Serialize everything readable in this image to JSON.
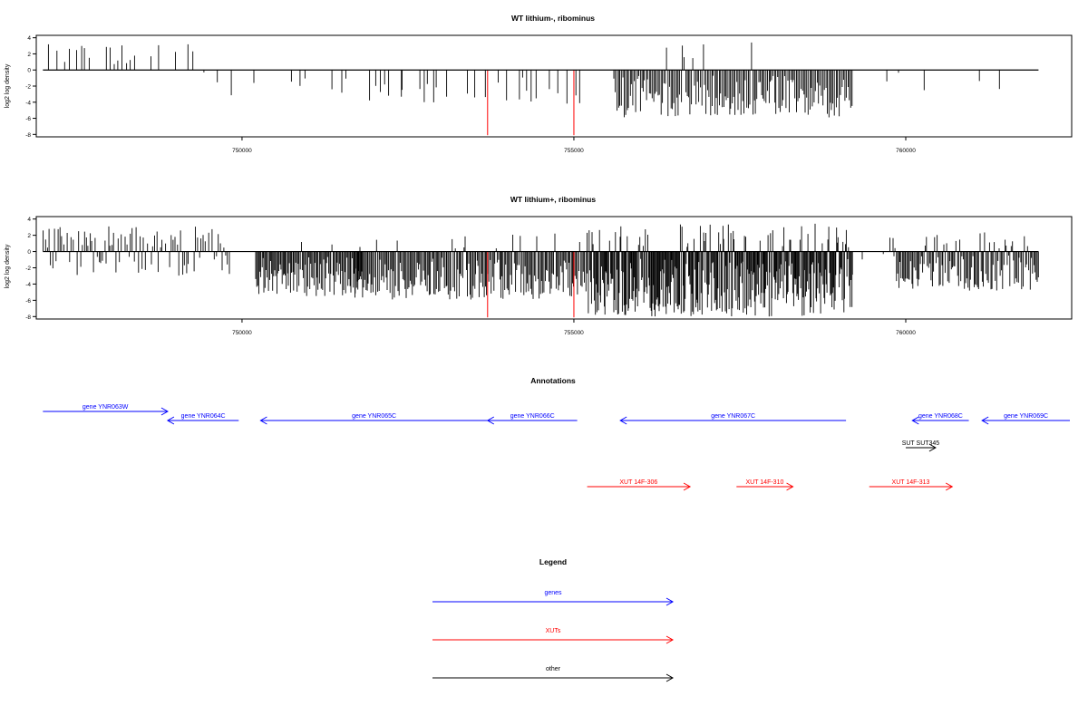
{
  "chart_data": [
    {
      "type": "bar",
      "title": "WT lithium-, ribominus",
      "ylabel": "log2 log density",
      "xlim": [
        746900,
        762500
      ],
      "ylim": [
        -8.3,
        4.3
      ],
      "yticks": [
        4,
        2,
        0,
        -2,
        -4,
        -6,
        -8
      ],
      "xticks": [
        750000,
        755000,
        760000
      ],
      "xtick_labels": [
        "750000",
        "755000",
        "760000"
      ],
      "data_xrange": [
        747000,
        762000
      ],
      "baseline": 0,
      "bar_color": "#000000",
      "highlight_color": "#ff0000",
      "highlights": [
        {
          "x": 753700,
          "y": -8.1
        },
        {
          "x": 755000,
          "y": -8.1
        }
      ],
      "clusters": [
        {
          "x0": 747000,
          "x1": 749600,
          "step": 62,
          "min": 0.6,
          "max": 3.2,
          "amp": 1.0,
          "pos_prob": 0.92,
          "fill": 0.45
        },
        {
          "x0": 749600,
          "x1": 752400,
          "step": 70,
          "min": -4.0,
          "max": 0.5,
          "amp": 1.0,
          "pos_prob": 0.0,
          "fill": 0.35
        },
        {
          "x0": 752400,
          "x1": 755500,
          "step": 65,
          "min": -4.2,
          "max": 0.5,
          "amp": 1.0,
          "pos_prob": 0.0,
          "fill": 0.45
        },
        {
          "x0": 755600,
          "x1": 759200,
          "step": 22,
          "min": -5.9,
          "max": 3.5,
          "amp": 1.0,
          "pos_prob": 0.03,
          "fill": 1.0
        },
        {
          "x0": 759200,
          "x1": 762000,
          "step": 95,
          "min": -2.8,
          "max": 2.9,
          "amp": 1.0,
          "pos_prob": 0.1,
          "fill": 0.25
        }
      ]
    },
    {
      "type": "bar",
      "title": "WT lithium+, ribominus",
      "ylabel": "log2 log density",
      "xlim": [
        746900,
        762500
      ],
      "ylim": [
        -8.3,
        4.3
      ],
      "yticks": [
        4,
        2,
        0,
        -2,
        -4,
        -6,
        -8
      ],
      "xticks": [
        750000,
        755000,
        760000
      ],
      "xtick_labels": [
        "750000",
        "755000",
        "760000"
      ],
      "data_xrange": [
        747000,
        762000
      ],
      "baseline": 0,
      "bar_color": "#000000",
      "highlight_color": "#ff0000",
      "highlights": [
        {
          "x": 753700,
          "y": -8.1
        },
        {
          "x": 755000,
          "y": -8.1
        }
      ],
      "clusters": [
        {
          "x0": 747000,
          "x1": 749800,
          "step": 28,
          "min": -3.0,
          "max": 3.2,
          "amp": 1.0,
          "pos_prob": 0.65,
          "fill": 0.9
        },
        {
          "x0": 750200,
          "x1": 751800,
          "step": 16,
          "min": -5.6,
          "max": 1.5,
          "amp": 1.0,
          "pos_prob": 0.05,
          "fill": 1.0
        },
        {
          "x0": 751700,
          "x1": 755200,
          "step": 18,
          "min": -5.9,
          "max": 2.5,
          "amp": 1.0,
          "pos_prob": 0.08,
          "fill": 1.0
        },
        {
          "x0": 755200,
          "x1": 759200,
          "step": 12,
          "min": -8.0,
          "max": 3.5,
          "amp": 1.0,
          "pos_prob": 0.15,
          "fill": 1.0
        },
        {
          "x0": 759300,
          "x1": 759800,
          "step": 90,
          "min": -2.0,
          "max": 1.8,
          "amp": 1.0,
          "pos_prob": 0.4,
          "fill": 0.5
        },
        {
          "x0": 759800,
          "x1": 762000,
          "step": 18,
          "min": -4.8,
          "max": 2.4,
          "amp": 1.0,
          "pos_prob": 0.12,
          "fill": 1.0
        }
      ]
    }
  ],
  "annotations": {
    "title": "Annotations",
    "genes_color": "#0000ff",
    "xuts_color": "#ff0000",
    "other_color": "#000000",
    "features": [
      {
        "label": "gene YNR063W",
        "kind": "gene",
        "start": 747000,
        "end": 748880,
        "strand": "+"
      },
      {
        "label": "gene YNR064C",
        "kind": "gene",
        "start": 748880,
        "end": 749950,
        "strand": "-"
      },
      {
        "label": "gene YNR065C",
        "kind": "gene",
        "start": 750280,
        "end": 753700,
        "strand": "-"
      },
      {
        "label": "gene YNR066C",
        "kind": "gene",
        "start": 753700,
        "end": 755050,
        "strand": "-"
      },
      {
        "label": "gene YNR067C",
        "kind": "gene",
        "start": 755700,
        "end": 759100,
        "strand": "-"
      },
      {
        "label": "gene YNR068C",
        "kind": "gene",
        "start": 760100,
        "end": 760950,
        "strand": "-"
      },
      {
        "label": "gene YNR069C",
        "kind": "gene",
        "start": 761150,
        "end": 762500,
        "strand": "-"
      },
      {
        "label": "SUT SUT345",
        "kind": "other",
        "start": 760000,
        "end": 760450,
        "strand": "+"
      },
      {
        "label": "XUT 14F-306",
        "kind": "xut",
        "start": 755200,
        "end": 756750,
        "strand": "+"
      },
      {
        "label": "XUT 14F-310",
        "kind": "xut",
        "start": 757450,
        "end": 758300,
        "strand": "+"
      },
      {
        "label": "XUT 14F-313",
        "kind": "xut",
        "start": 759450,
        "end": 760700,
        "strand": "+"
      }
    ]
  },
  "legend": {
    "title": "Legend",
    "items": [
      {
        "label": "genes",
        "color": "#0000ff"
      },
      {
        "label": "XUTs",
        "color": "#ff0000"
      },
      {
        "label": "other",
        "color": "#000000"
      }
    ]
  }
}
